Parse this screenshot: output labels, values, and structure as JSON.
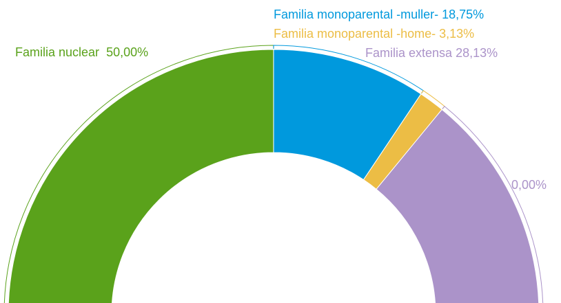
{
  "chart_data": {
    "type": "pie",
    "categories": [
      "Familia nuclear",
      "Familia monoparental -muller-",
      "Familia monoparental -home-",
      "Familia extensa",
      null
    ],
    "values": [
      50,
      18.75,
      3.13,
      28.13,
      0
    ],
    "value_labels": [
      "50,00%",
      "18,75%",
      "3,13%",
      "28,13%",
      "0,00%"
    ],
    "colors": [
      "#5aa21b",
      "#0099dd",
      "#ecbd45",
      "#ab93c9",
      "#ab93c9"
    ]
  }
}
